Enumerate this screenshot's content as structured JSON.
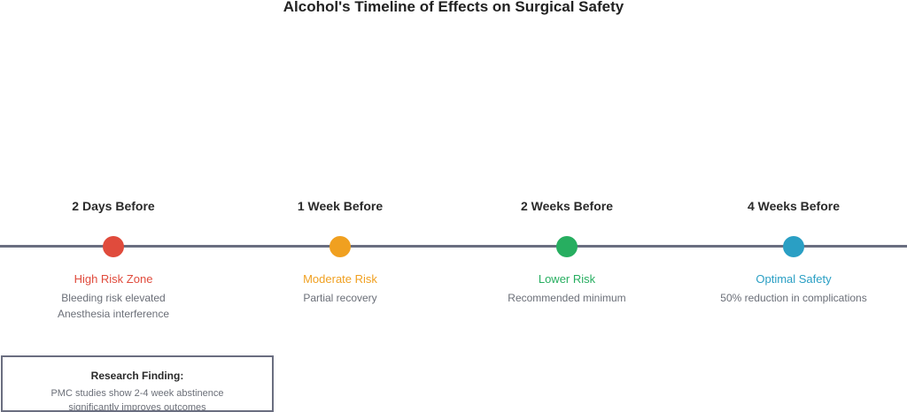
{
  "title": "Alcohol's Timeline of Effects on Surgical Safety",
  "stages": [
    {
      "heading": "2 Days Before",
      "risk": "High Risk Zone",
      "details": [
        "Bleeding risk elevated",
        "Anesthesia interference"
      ],
      "color": "#e04b3c"
    },
    {
      "heading": "1 Week Before",
      "risk": "Moderate Risk",
      "details": [
        "Partial recovery",
        ""
      ],
      "color": "#f0a020"
    },
    {
      "heading": "2 Weeks Before",
      "risk": "Lower Risk",
      "details": [
        "Recommended minimum",
        ""
      ],
      "color": "#27ae60"
    },
    {
      "heading": "4 Weeks Before",
      "risk": "Optimal Safety",
      "details": [
        "50% reduction in complications",
        ""
      ],
      "color": "#2a9fc4"
    }
  ],
  "finding": {
    "heading": "Research Finding:",
    "lines": [
      "PMC studies show 2-4 week abstinence",
      "significantly improves outcomes"
    ]
  },
  "colors": {
    "timeline": "#6a6e80",
    "border": "#6a6e80"
  }
}
